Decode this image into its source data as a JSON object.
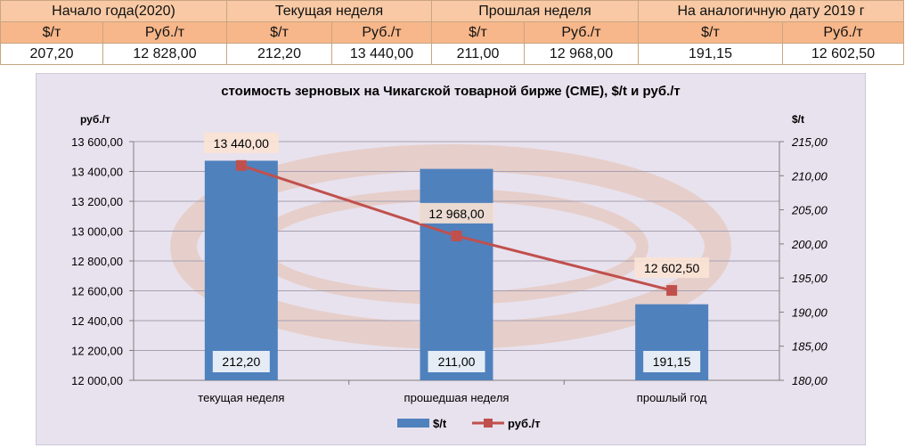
{
  "table": {
    "headers": [
      "Начало года(2020)",
      "Текущая неделя",
      "Прошлая неделя",
      "На аналогичную дату 2019 г"
    ],
    "units": [
      "$/т",
      "Руб./т",
      "$/т",
      "Руб./т",
      "$/т",
      "Руб./т",
      "$/т",
      "Руб./т"
    ],
    "values": [
      "207,20",
      "12 828,00",
      "212,20",
      "13 440,00",
      "211,00",
      "12 968,00",
      "191,15",
      "12 602,50"
    ]
  },
  "chart_data": {
    "type": "bar",
    "title": "стоимость зерновых на Чикагской товарной бирже (CME), $/t и руб./т",
    "ylabel_left": "руб./т",
    "ylabel_right": "$/t",
    "categories": [
      "текущая неделя",
      "прошедшая неделя",
      "прошлый год"
    ],
    "y_left_range": [
      12000,
      13600
    ],
    "y_right_range": [
      180,
      215
    ],
    "y_left_ticks": [
      "12 000,00",
      "12 200,00",
      "12 400,00",
      "12 600,00",
      "12 800,00",
      "13 000,00",
      "13 200,00",
      "13 400,00",
      "13 600,00"
    ],
    "y_right_ticks": [
      "180,00",
      "185,00",
      "190,00",
      "195,00",
      "200,00",
      "205,00",
      "210,00",
      "215,00"
    ],
    "grid": true,
    "legend_position": "bottom",
    "series": [
      {
        "name": "$/t",
        "type": "bar",
        "axis": "right",
        "color": "#4f81bd",
        "values": [
          212.2,
          211.0,
          191.15
        ],
        "labels": [
          "212,20",
          "211,00",
          "191,15"
        ]
      },
      {
        "name": "руб./т",
        "type": "line",
        "axis": "left",
        "color": "#c0504d",
        "values": [
          13440.0,
          12968.0,
          12602.5
        ],
        "labels": [
          "13 440,00",
          "12 968,00",
          "12 602,50"
        ]
      }
    ]
  }
}
